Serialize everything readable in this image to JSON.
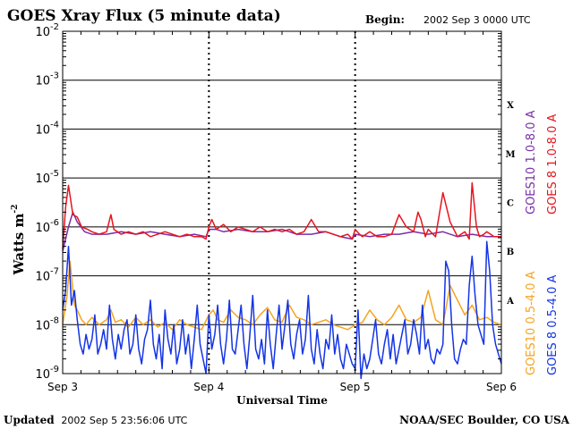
{
  "chart_data": {
    "type": "line",
    "title": "GOES Xray Flux (5 minute data)",
    "begin_label": "Begin:",
    "begin_value": "2002 Sep 3 0000 UTC",
    "ylabel": "Watts m",
    "ylabel_exp": "-2",
    "xlabel": "Universal Time",
    "x_unit": "days since 2002 Sep 3 00:00 UTC",
    "xlim": [
      0,
      3
    ],
    "ylim_log10": [
      -9,
      -2
    ],
    "y_ticks": [
      {
        "base": "10",
        "exp": "-2",
        "log": -2
      },
      {
        "base": "10",
        "exp": "-3",
        "log": -3
      },
      {
        "base": "10",
        "exp": "-4",
        "log": -4
      },
      {
        "base": "10",
        "exp": "-5",
        "log": -5
      },
      {
        "base": "10",
        "exp": "-6",
        "log": -6
      },
      {
        "base": "10",
        "exp": "-7",
        "log": -7
      },
      {
        "base": "10",
        "exp": "-8",
        "log": -8
      },
      {
        "base": "10",
        "exp": "-9",
        "log": -9
      }
    ],
    "x_ticks": [
      {
        "label": "Sep 3",
        "value": 0
      },
      {
        "label": "Sep 4",
        "value": 1
      },
      {
        "label": "Sep 5",
        "value": 2
      },
      {
        "label": "Sep 6",
        "value": 3
      }
    ],
    "flare_classes": [
      {
        "label": "X",
        "log": -3.5
      },
      {
        "label": "M",
        "log": -4.5
      },
      {
        "label": "C",
        "log": -5.5
      },
      {
        "label": "B",
        "log": -6.5
      },
      {
        "label": "A",
        "log": -7.5
      }
    ],
    "series": [
      {
        "name": "GOES10 1.0-8.0 A",
        "color": "#7a2ea8",
        "x": [
          0,
          0.04,
          0.07,
          0.1,
          0.15,
          0.2,
          0.3,
          0.4,
          0.5,
          0.6,
          0.7,
          0.8,
          0.9,
          0.98,
          1.0,
          1.05,
          1.1,
          1.2,
          1.3,
          1.4,
          1.5,
          1.6,
          1.7,
          1.8,
          1.9,
          1.98,
          2.0,
          2.1,
          2.2,
          2.3,
          2.4,
          2.5,
          2.6,
          2.7,
          2.8,
          2.9,
          3.0
        ],
        "y_log10": [
          -6.5,
          -6.0,
          -5.7,
          -5.9,
          -6.1,
          -6.15,
          -6.15,
          -6.1,
          -6.15,
          -6.1,
          -6.15,
          -6.2,
          -6.15,
          -6.2,
          -6.05,
          -6.05,
          -6.1,
          -6.05,
          -6.1,
          -6.1,
          -6.05,
          -6.15,
          -6.15,
          -6.1,
          -6.2,
          -6.25,
          -6.15,
          -6.2,
          -6.15,
          -6.15,
          -6.1,
          -6.15,
          -6.1,
          -6.2,
          -6.15,
          -6.2,
          -6.2
        ]
      },
      {
        "name": "GOES 8 1.0-8.0 A",
        "color": "#e8141e",
        "x": [
          0,
          0.02,
          0.04,
          0.07,
          0.1,
          0.13,
          0.17,
          0.2,
          0.25,
          0.3,
          0.33,
          0.35,
          0.4,
          0.45,
          0.5,
          0.55,
          0.6,
          0.65,
          0.7,
          0.75,
          0.8,
          0.85,
          0.9,
          0.95,
          0.98,
          1.0,
          1.02,
          1.05,
          1.1,
          1.15,
          1.2,
          1.25,
          1.3,
          1.35,
          1.4,
          1.45,
          1.5,
          1.55,
          1.6,
          1.65,
          1.7,
          1.75,
          1.8,
          1.85,
          1.9,
          1.95,
          1.98,
          2.0,
          2.03,
          2.05,
          2.1,
          2.15,
          2.2,
          2.25,
          2.3,
          2.35,
          2.4,
          2.43,
          2.45,
          2.48,
          2.5,
          2.55,
          2.6,
          2.65,
          2.7,
          2.75,
          2.78,
          2.8,
          2.83,
          2.85,
          2.88,
          2.9,
          2.95,
          3.0
        ],
        "y_log10": [
          -6.45,
          -5.6,
          -5.15,
          -5.75,
          -5.8,
          -6.0,
          -6.05,
          -6.1,
          -6.15,
          -6.1,
          -5.75,
          -6.05,
          -6.15,
          -6.1,
          -6.15,
          -6.1,
          -6.2,
          -6.15,
          -6.1,
          -6.15,
          -6.2,
          -6.15,
          -6.2,
          -6.2,
          -6.25,
          -6.0,
          -5.85,
          -6.05,
          -5.95,
          -6.1,
          -6.0,
          -6.05,
          -6.1,
          -6.0,
          -6.1,
          -6.05,
          -6.1,
          -6.05,
          -6.15,
          -6.1,
          -5.85,
          -6.1,
          -6.1,
          -6.15,
          -6.2,
          -6.15,
          -6.25,
          -6.05,
          -6.15,
          -6.2,
          -6.1,
          -6.2,
          -6.2,
          -6.15,
          -5.75,
          -6.0,
          -6.1,
          -5.7,
          -5.85,
          -6.2,
          -6.05,
          -6.2,
          -5.3,
          -5.9,
          -6.2,
          -6.1,
          -6.25,
          -5.1,
          -6.0,
          -6.2,
          -6.15,
          -6.1,
          -6.2,
          -6.2
        ]
      },
      {
        "name": "GOES10 0.5-4.0 A",
        "color": "#f5a31e",
        "x": [
          0,
          0.03,
          0.05,
          0.08,
          0.1,
          0.13,
          0.16,
          0.2,
          0.25,
          0.3,
          0.33,
          0.36,
          0.4,
          0.45,
          0.5,
          0.55,
          0.6,
          0.65,
          0.7,
          0.75,
          0.8,
          0.85,
          0.9,
          0.95,
          1.0,
          1.03,
          1.06,
          1.1,
          1.15,
          1.2,
          1.25,
          1.3,
          1.35,
          1.4,
          1.45,
          1.5,
          1.55,
          1.6,
          1.65,
          1.7,
          1.75,
          1.8,
          1.85,
          1.9,
          1.95,
          2.0,
          2.05,
          2.1,
          2.15,
          2.2,
          2.25,
          2.3,
          2.35,
          2.4,
          2.45,
          2.5,
          2.55,
          2.6,
          2.65,
          2.7,
          2.75,
          2.8,
          2.85,
          2.9,
          2.95,
          3.0
        ],
        "y_log10": [
          -8.0,
          -7.4,
          -6.7,
          -7.6,
          -7.7,
          -7.9,
          -8.0,
          -7.85,
          -8.0,
          -7.9,
          -7.7,
          -7.95,
          -7.9,
          -8.05,
          -7.85,
          -8.0,
          -7.9,
          -8.05,
          -7.95,
          -8.1,
          -7.9,
          -8.0,
          -8.05,
          -8.1,
          -7.8,
          -7.7,
          -7.9,
          -7.95,
          -7.7,
          -7.85,
          -7.9,
          -8.0,
          -7.8,
          -7.65,
          -7.9,
          -7.95,
          -7.6,
          -7.85,
          -7.9,
          -8.0,
          -7.95,
          -7.9,
          -8.0,
          -8.05,
          -8.1,
          -8.0,
          -7.95,
          -7.7,
          -7.9,
          -8.0,
          -7.85,
          -7.6,
          -7.9,
          -7.95,
          -7.85,
          -7.3,
          -7.9,
          -8.0,
          -7.2,
          -7.5,
          -7.8,
          -7.6,
          -7.9,
          -7.85,
          -7.95,
          -8.0
        ]
      },
      {
        "name": "GOES 8 0.5-4.0 A",
        "color": "#1434e6",
        "x": [
          0,
          0.02,
          0.04,
          0.06,
          0.08,
          0.1,
          0.12,
          0.14,
          0.16,
          0.18,
          0.2,
          0.22,
          0.24,
          0.26,
          0.28,
          0.3,
          0.32,
          0.34,
          0.36,
          0.38,
          0.4,
          0.42,
          0.44,
          0.46,
          0.48,
          0.5,
          0.52,
          0.54,
          0.56,
          0.58,
          0.6,
          0.62,
          0.64,
          0.66,
          0.68,
          0.7,
          0.72,
          0.74,
          0.76,
          0.78,
          0.8,
          0.82,
          0.84,
          0.86,
          0.88,
          0.9,
          0.92,
          0.94,
          0.96,
          0.98,
          1.0,
          1.02,
          1.04,
          1.06,
          1.08,
          1.1,
          1.12,
          1.14,
          1.16,
          1.18,
          1.2,
          1.22,
          1.24,
          1.26,
          1.28,
          1.3,
          1.32,
          1.34,
          1.36,
          1.38,
          1.4,
          1.42,
          1.44,
          1.46,
          1.48,
          1.5,
          1.52,
          1.54,
          1.56,
          1.58,
          1.6,
          1.62,
          1.64,
          1.66,
          1.68,
          1.7,
          1.72,
          1.74,
          1.76,
          1.78,
          1.8,
          1.82,
          1.84,
          1.86,
          1.88,
          1.9,
          1.92,
          1.94,
          1.96,
          1.98,
          2.0,
          2.02,
          2.04,
          2.06,
          2.08,
          2.1,
          2.12,
          2.14,
          2.16,
          2.18,
          2.2,
          2.22,
          2.24,
          2.26,
          2.28,
          2.3,
          2.32,
          2.34,
          2.36,
          2.38,
          2.4,
          2.42,
          2.44,
          2.46,
          2.48,
          2.5,
          2.52,
          2.54,
          2.56,
          2.58,
          2.6,
          2.62,
          2.64,
          2.66,
          2.68,
          2.7,
          2.72,
          2.74,
          2.76,
          2.78,
          2.8,
          2.82,
          2.84,
          2.86,
          2.88,
          2.9,
          2.92,
          2.94,
          2.96,
          2.98,
          3.0
        ],
        "y_log10": [
          -7.7,
          -7.3,
          -6.4,
          -7.6,
          -7.3,
          -7.9,
          -8.4,
          -8.6,
          -8.2,
          -8.5,
          -8.3,
          -7.8,
          -8.6,
          -8.4,
          -8.1,
          -8.5,
          -7.6,
          -8.3,
          -8.7,
          -8.2,
          -8.5,
          -8.1,
          -7.9,
          -8.6,
          -8.4,
          -7.8,
          -8.5,
          -8.8,
          -8.3,
          -8.1,
          -7.5,
          -8.4,
          -8.7,
          -8.2,
          -8.9,
          -7.7,
          -8.3,
          -8.6,
          -8.0,
          -8.8,
          -8.5,
          -7.9,
          -8.6,
          -8.2,
          -8.9,
          -8.3,
          -7.6,
          -8.4,
          -8.7,
          -9.0,
          -7.8,
          -8.5,
          -8.2,
          -7.6,
          -8.4,
          -8.8,
          -8.3,
          -7.5,
          -8.5,
          -8.6,
          -8.1,
          -7.6,
          -8.4,
          -8.9,
          -8.2,
          -7.4,
          -8.5,
          -8.7,
          -8.3,
          -8.8,
          -7.7,
          -8.4,
          -8.9,
          -8.2,
          -7.6,
          -8.5,
          -8.0,
          -7.5,
          -8.4,
          -8.7,
          -8.2,
          -7.9,
          -8.6,
          -8.3,
          -7.4,
          -8.5,
          -8.8,
          -8.1,
          -8.6,
          -8.9,
          -8.3,
          -8.5,
          -7.8,
          -8.6,
          -8.2,
          -8.7,
          -8.9,
          -8.4,
          -8.6,
          -8.8,
          -8.9,
          -7.7,
          -9.1,
          -8.6,
          -8.9,
          -8.7,
          -8.3,
          -7.9,
          -8.6,
          -8.8,
          -8.4,
          -8.1,
          -8.7,
          -8.2,
          -8.8,
          -8.5,
          -8.2,
          -7.9,
          -8.6,
          -8.4,
          -7.9,
          -8.2,
          -8.6,
          -7.6,
          -8.5,
          -8.3,
          -8.7,
          -8.8,
          -8.5,
          -8.6,
          -8.4,
          -6.7,
          -6.9,
          -8.0,
          -8.7,
          -8.8,
          -8.5,
          -8.3,
          -8.4,
          -7.2,
          -6.6,
          -7.4,
          -8.0,
          -8.2,
          -8.4,
          -6.3,
          -6.9,
          -8.0,
          -8.4,
          -8.6,
          -8.8
        ]
      }
    ]
  },
  "footer": {
    "updated_label": "Updated",
    "updated_value": "2002 Sep  5 23:56:06 UTC",
    "source": "NOAA/SEC Boulder, CO USA"
  }
}
